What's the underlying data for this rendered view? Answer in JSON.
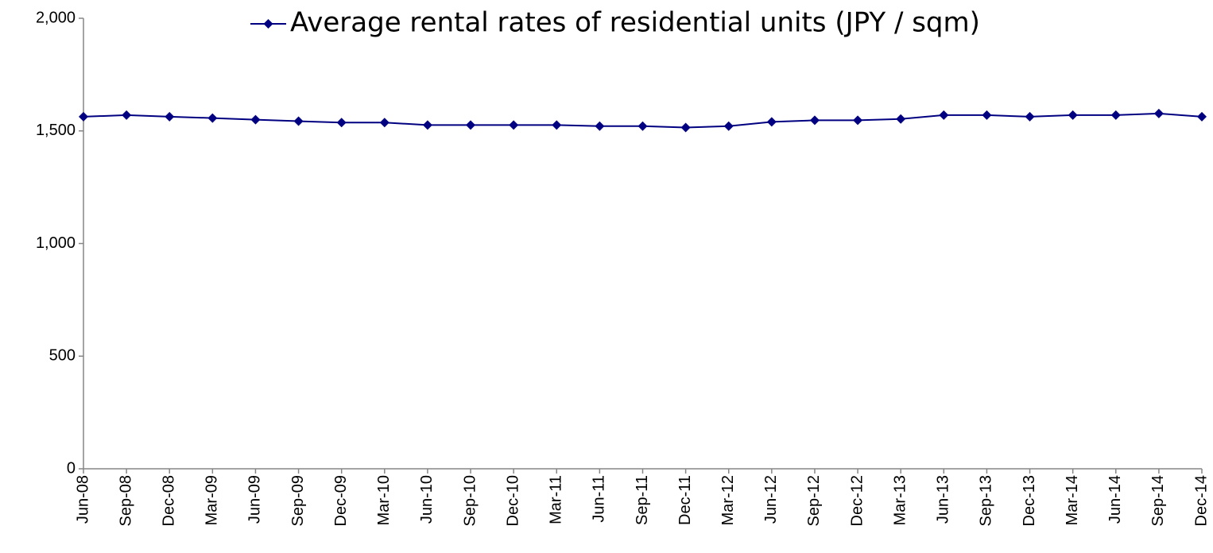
{
  "chart_data": {
    "type": "line",
    "categories": [
      "Jun-08",
      "Sep-08",
      "Dec-08",
      "Mar-09",
      "Jun-09",
      "Sep-09",
      "Dec-09",
      "Mar-10",
      "Jun-10",
      "Sep-10",
      "Dec-10",
      "Mar-11",
      "Jun-11",
      "Sep-11",
      "Dec-11",
      "Mar-12",
      "Jun-12",
      "Sep-12",
      "Dec-12",
      "Mar-13",
      "Jun-13",
      "Sep-13",
      "Dec-13",
      "Mar-14",
      "Jun-14",
      "Sep-14",
      "Dec-14"
    ],
    "series": [
      {
        "name": "Average rental rates of residential units (JPY / sqm)",
        "color": "#000080",
        "values": [
          1563,
          1570,
          1563,
          1557,
          1550,
          1543,
          1537,
          1537,
          1526,
          1526,
          1526,
          1526,
          1521,
          1521,
          1515,
          1521,
          1540,
          1547,
          1547,
          1553,
          1570,
          1570,
          1563,
          1570,
          1570,
          1577,
          1563
        ]
      }
    ],
    "ylim": [
      0,
      2000
    ],
    "yticks": [
      0,
      500,
      {
        "value": 1000,
        "label": "1,000"
      },
      {
        "value": 1500,
        "label": "1,500"
      },
      {
        "value": 2000,
        "label": "2,000"
      }
    ],
    "grid": false,
    "legend": "top"
  }
}
